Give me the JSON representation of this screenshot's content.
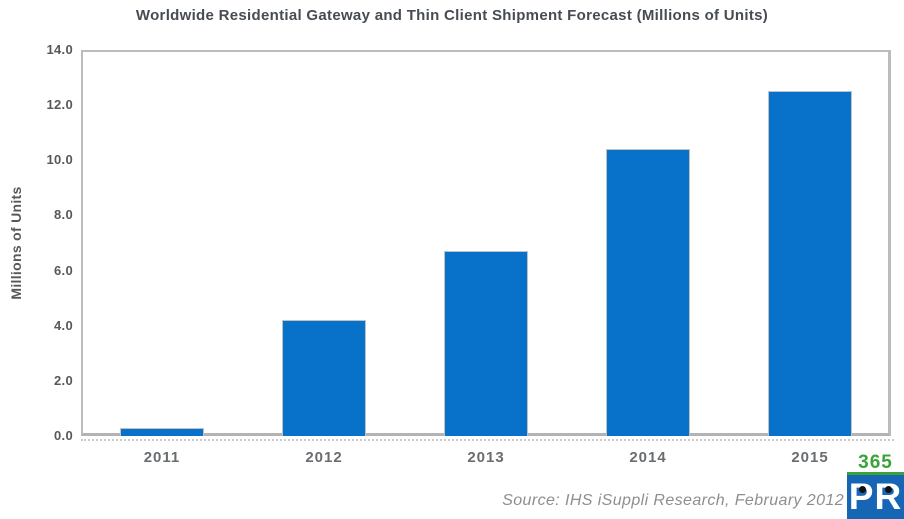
{
  "chart_data": {
    "type": "bar",
    "title": "Worldwide Residential Gateway and Thin Client Shipment Forecast (Millions of Units)",
    "categories": [
      "2011",
      "2012",
      "2013",
      "2014",
      "2015"
    ],
    "values": [
      0.3,
      4.2,
      6.7,
      10.4,
      12.5
    ],
    "xlabel": "",
    "ylabel": "Millions of Units",
    "ylim": [
      0,
      14
    ],
    "ytick_step": 2,
    "ytick_labels": [
      "0.0",
      "2.0",
      "4.0",
      "6.0",
      "8.0",
      "10.0",
      "12.0",
      "14.0"
    ],
    "grid": false,
    "legend": null,
    "bar_color": "#0872cb"
  },
  "source_note": "Source: IHS iSuppli Research, February 2012",
  "logo": {
    "top_text": "365",
    "bottom_text": "PR",
    "green": "#3aa33a",
    "blue": "#1766b5"
  }
}
